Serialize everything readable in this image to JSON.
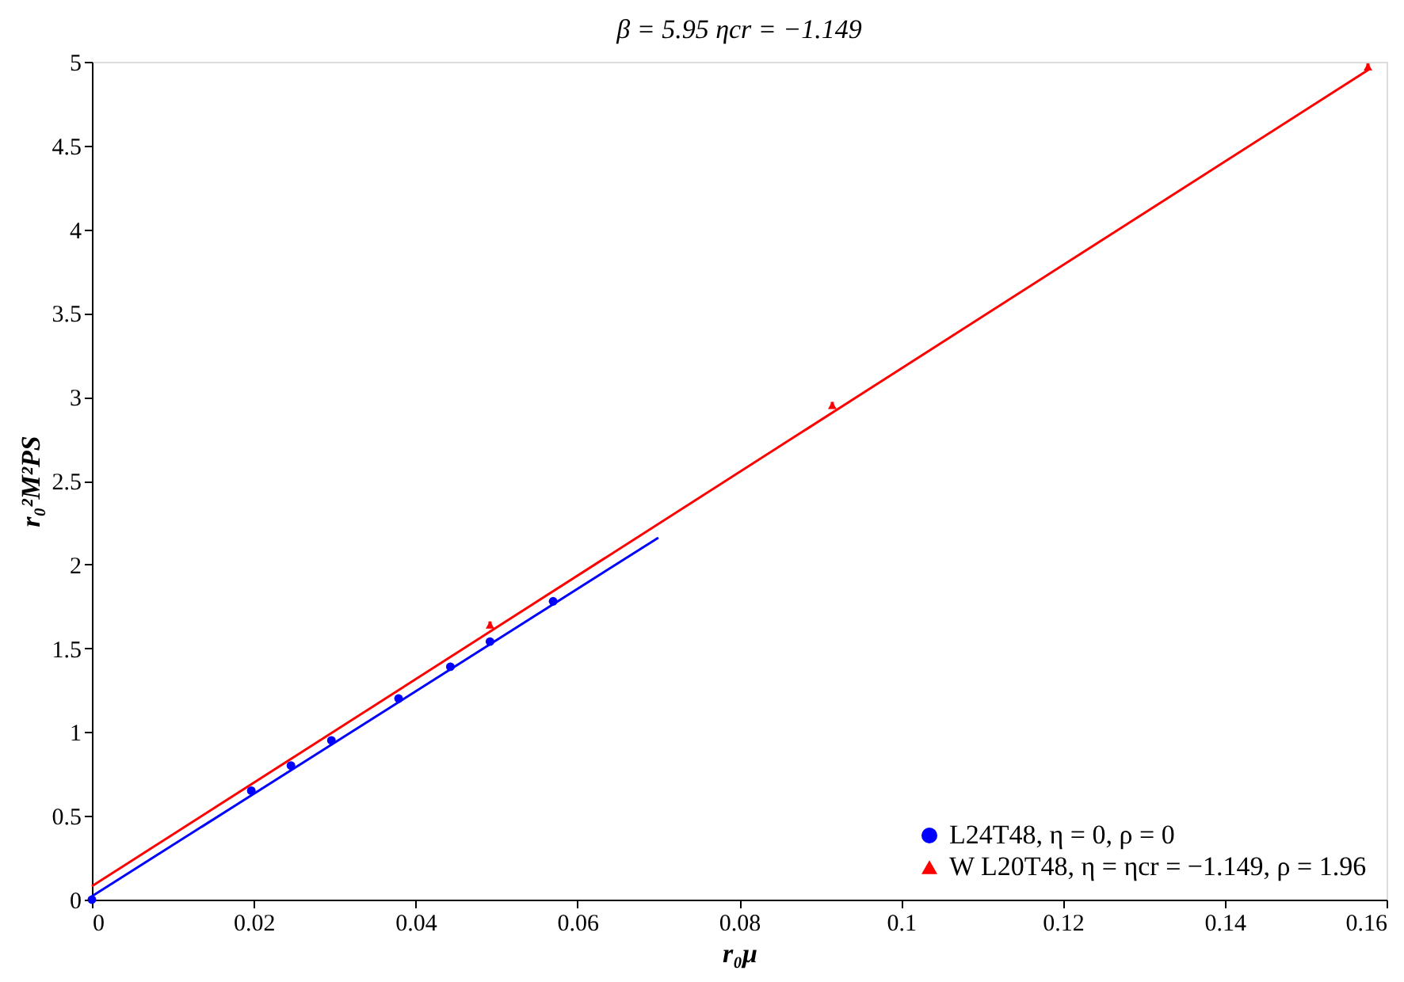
{
  "chart_data": {
    "type": "scatter",
    "title": "β = 5.95  ηcr = −1.149",
    "xlabel": "r₀μ",
    "ylabel": "r₀²M²PS",
    "xlim": [
      0,
      0.16
    ],
    "xticks": [
      0,
      0.02,
      0.04,
      0.06,
      0.08,
      0.1,
      0.12,
      0.14,
      0.16
    ],
    "ylim": [
      0,
      5
    ],
    "yticks": [
      0,
      0.5,
      1,
      1.5,
      2,
      2.5,
      3,
      3.5,
      4,
      4.5,
      5
    ],
    "grid": false,
    "legend": "bottom right",
    "series": [
      {
        "type": "line",
        "color": "#0000ff",
        "x": [
          0,
          0.07
        ],
        "values": [
          0.02,
          2.16
        ]
      },
      {
        "type": "line",
        "color": "#ff0000",
        "x": [
          0,
          0.158
        ],
        "values": [
          0.08,
          4.96
        ]
      },
      {
        "type": "scatter",
        "name": "L24T48, η = 0, ρ = 0",
        "color": "#0000ff",
        "marker": "circle",
        "x": [
          0,
          0.0197,
          0.0246,
          0.0296,
          0.0379,
          0.0443,
          0.0492,
          0.057
        ],
        "values": [
          0,
          0.65,
          0.8,
          0.95,
          1.2,
          1.39,
          1.54,
          1.78
        ],
        "errors": [
          0.02,
          0.02,
          0.02,
          0.02,
          0.02,
          0.02,
          0.02,
          0.02
        ]
      },
      {
        "type": "scatter",
        "name": "W L20T48, η = ηcr = −1.149, ρ = 1.96",
        "color": "#ff0000",
        "marker": "triangle",
        "x": [
          0.0492,
          0.0915,
          0.1577
        ],
        "values": [
          1.64,
          2.95,
          4.97
        ],
        "errors": [
          0.02,
          0.02,
          0.02
        ]
      }
    ]
  }
}
